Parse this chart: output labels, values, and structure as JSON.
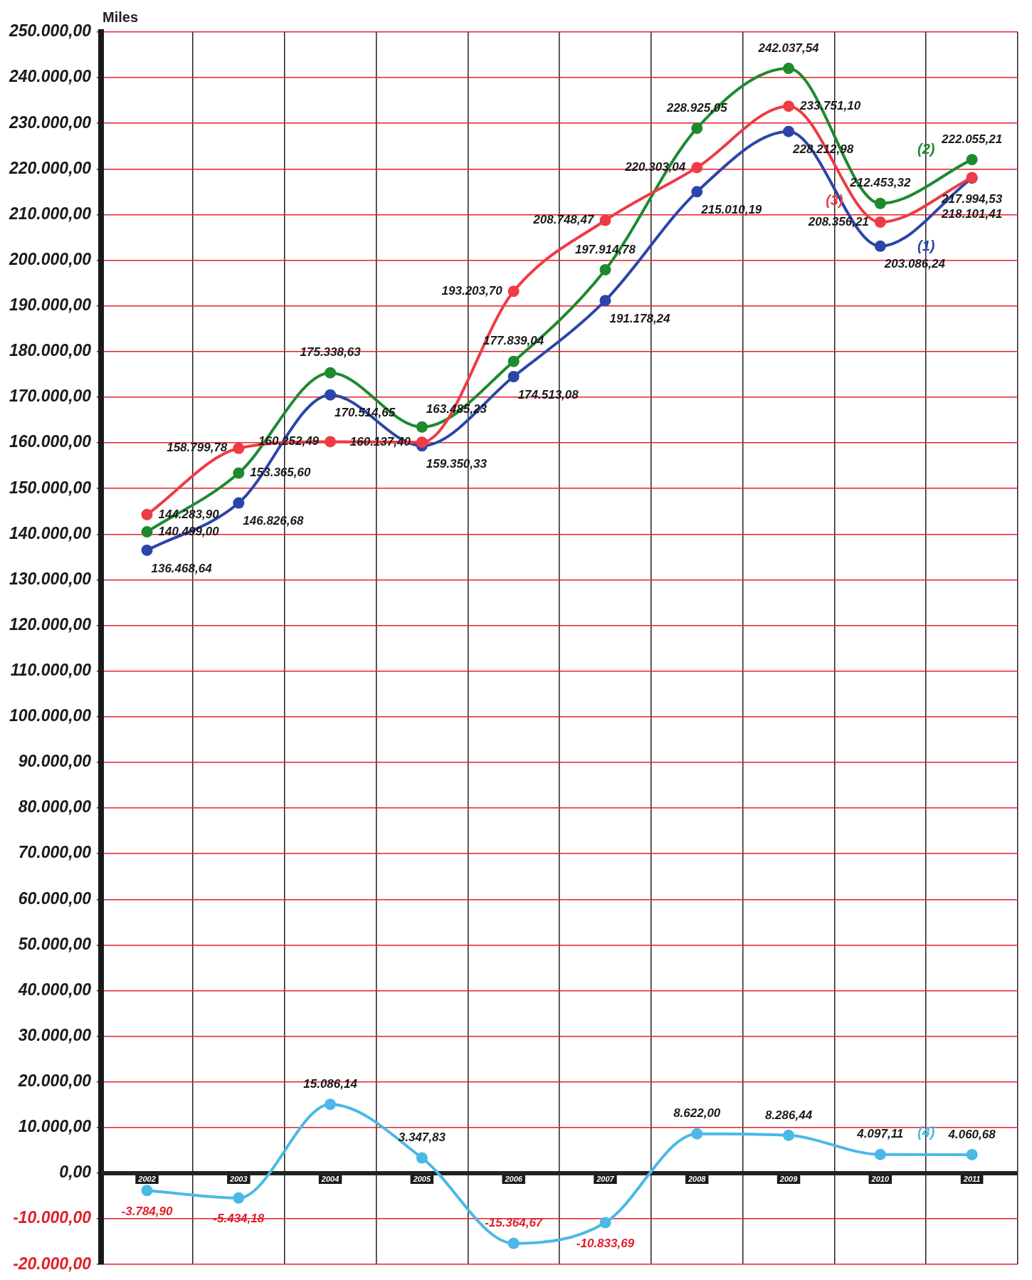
{
  "chart_data": {
    "type": "line",
    "ylabel": "Miles",
    "categories": [
      "2002",
      "2003",
      "2004",
      "2005",
      "2006",
      "2007",
      "2008",
      "2009",
      "2010",
      "2011"
    ],
    "series": [
      {
        "name": "(1)",
        "color": "#2b45a8",
        "values": [
          136468.64,
          146826.68,
          170514.65,
          159350.33,
          174513.08,
          191178.24,
          215010.19,
          228212.98,
          203086.24,
          217994.53
        ],
        "value_labels": [
          "136.468,64",
          "146.826,68",
          "170.514,65",
          "159.350,33",
          "174.513,08",
          "191.178,24",
          "215.010,19",
          "228.212,98",
          "203.086,24",
          "217.994,53"
        ]
      },
      {
        "name": "(2)",
        "color": "#1e8a2e",
        "values": [
          140499.0,
          153365.6,
          175338.63,
          163485.23,
          177839.04,
          197914.78,
          228925.05,
          242037.54,
          212453.32,
          222055.21
        ],
        "value_labels": [
          "140.499,00",
          "153.365,60",
          "175.338,63",
          "163.485,23",
          "177.839,04",
          "197.914,78",
          "228.925,05",
          "242.037,54",
          "212.453,32",
          "222.055,21"
        ]
      },
      {
        "name": "(3)",
        "color": "#ee3b45",
        "values": [
          144283.9,
          158799.78,
          160252.49,
          160137.4,
          193203.7,
          208748.47,
          220303.04,
          233751.1,
          208356.21,
          218101.41
        ],
        "value_labels": [
          "144.283,90",
          "158.799,78",
          "160.252,49",
          "160.137,40",
          "193.203,70",
          "208.748,47",
          "220.303,04",
          "233.751,10",
          "208.356,21",
          "218.101,41"
        ]
      },
      {
        "name": "(4)",
        "color": "#4bb8e6",
        "values": [
          -3784.9,
          -5434.18,
          15086.14,
          3347.83,
          -15364.67,
          -10833.69,
          8622.0,
          8286.44,
          4097.11,
          4060.68
        ],
        "value_labels": [
          "-3.784,90",
          "-5.434,18",
          "15.086,14",
          "3.347,83",
          "-15.364,67",
          "-10.833,69",
          "8.622,00",
          "8.286,44",
          "4.097,11",
          "4.060,68"
        ]
      }
    ],
    "ylim": [
      -20000,
      250000
    ],
    "yticks": [
      {
        "value": -20000,
        "label": "-20.000,00"
      },
      {
        "value": -10000,
        "label": "-10.000,00"
      },
      {
        "value": 0,
        "label": "0,00"
      },
      {
        "value": 10000,
        "label": "10.000,00"
      },
      {
        "value": 20000,
        "label": "20.000,00"
      },
      {
        "value": 30000,
        "label": "30.000,00"
      },
      {
        "value": 40000,
        "label": "40.000,00"
      },
      {
        "value": 50000,
        "label": "50.000,00"
      },
      {
        "value": 60000,
        "label": "60.000,00"
      },
      {
        "value": 70000,
        "label": "70.000,00"
      },
      {
        "value": 80000,
        "label": "80.000,00"
      },
      {
        "value": 90000,
        "label": "90.000,00"
      },
      {
        "value": 100000,
        "label": "100.000,00"
      },
      {
        "value": 110000,
        "label": "110.000,00"
      },
      {
        "value": 120000,
        "label": "120.000,00"
      },
      {
        "value": 130000,
        "label": "130.000,00"
      },
      {
        "value": 140000,
        "label": "140.000,00"
      },
      {
        "value": 150000,
        "label": "150.000,00"
      },
      {
        "value": 160000,
        "label": "160.000,00"
      },
      {
        "value": 170000,
        "label": "170.000,00"
      },
      {
        "value": 180000,
        "label": "180.000,00"
      },
      {
        "value": 190000,
        "label": "190.000,00"
      },
      {
        "value": 200000,
        "label": "200.000,00"
      },
      {
        "value": 210000,
        "label": "210.000,00"
      },
      {
        "value": 220000,
        "label": "220.000,00"
      },
      {
        "value": 230000,
        "label": "230.000,00"
      },
      {
        "value": 240000,
        "label": "240.000,00"
      },
      {
        "value": 250000,
        "label": "250.000,00"
      }
    ],
    "grid": true,
    "marker": "circle",
    "line_style": "solid",
    "legend": false
  }
}
